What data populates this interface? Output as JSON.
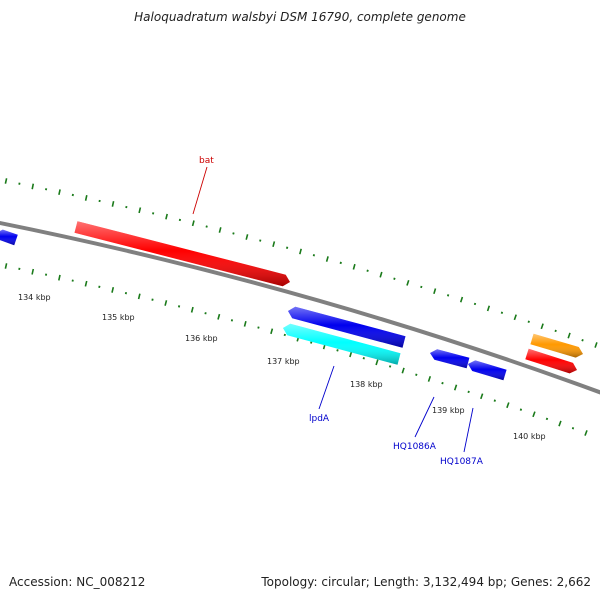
{
  "title": "Haloquadratum walsbyi DSM 16790, complete genome",
  "footer": {
    "accession": "Accession: NC_008212",
    "summary": "Topology: circular; Length: 3,132,494 bp; Genes: 2,662"
  },
  "colors": {
    "backbone": "#808080",
    "tick_marks": "#1a7a1a",
    "gene_red": "#ff0000",
    "gene_blue": "#0000ee",
    "gene_cyan": "#00ffff",
    "gene_orange": "#ff9900",
    "label_red": "#cc0000",
    "label_blue": "#0000cc"
  },
  "scale": {
    "unit": "kbp",
    "ticks": [
      {
        "label": "134 kbp"
      },
      {
        "label": "135 kbp"
      },
      {
        "label": "136 kbp"
      },
      {
        "label": "137 kbp"
      },
      {
        "label": "138 kbp"
      },
      {
        "label": "139 kbp"
      },
      {
        "label": "140 kbp"
      }
    ]
  },
  "genes": [
    {
      "id": "blue-left",
      "strand": "reverse",
      "color": "blue",
      "name": ""
    },
    {
      "id": "bat",
      "strand": "forward",
      "color": "red",
      "name": "bat"
    },
    {
      "id": "blue-mid",
      "strand": "reverse",
      "color": "blue",
      "name": ""
    },
    {
      "id": "lpdA",
      "strand": "reverse",
      "color": "cyan",
      "name": "lpdA"
    },
    {
      "id": "HQ1086A",
      "strand": "reverse",
      "color": "blue",
      "name": "HQ1086A"
    },
    {
      "id": "HQ1087A",
      "strand": "reverse",
      "color": "blue",
      "name": "HQ1087A"
    },
    {
      "id": "orange-right",
      "strand": "forward",
      "color": "orange",
      "name": ""
    },
    {
      "id": "red-right",
      "strand": "forward",
      "color": "red",
      "name": ""
    }
  ]
}
